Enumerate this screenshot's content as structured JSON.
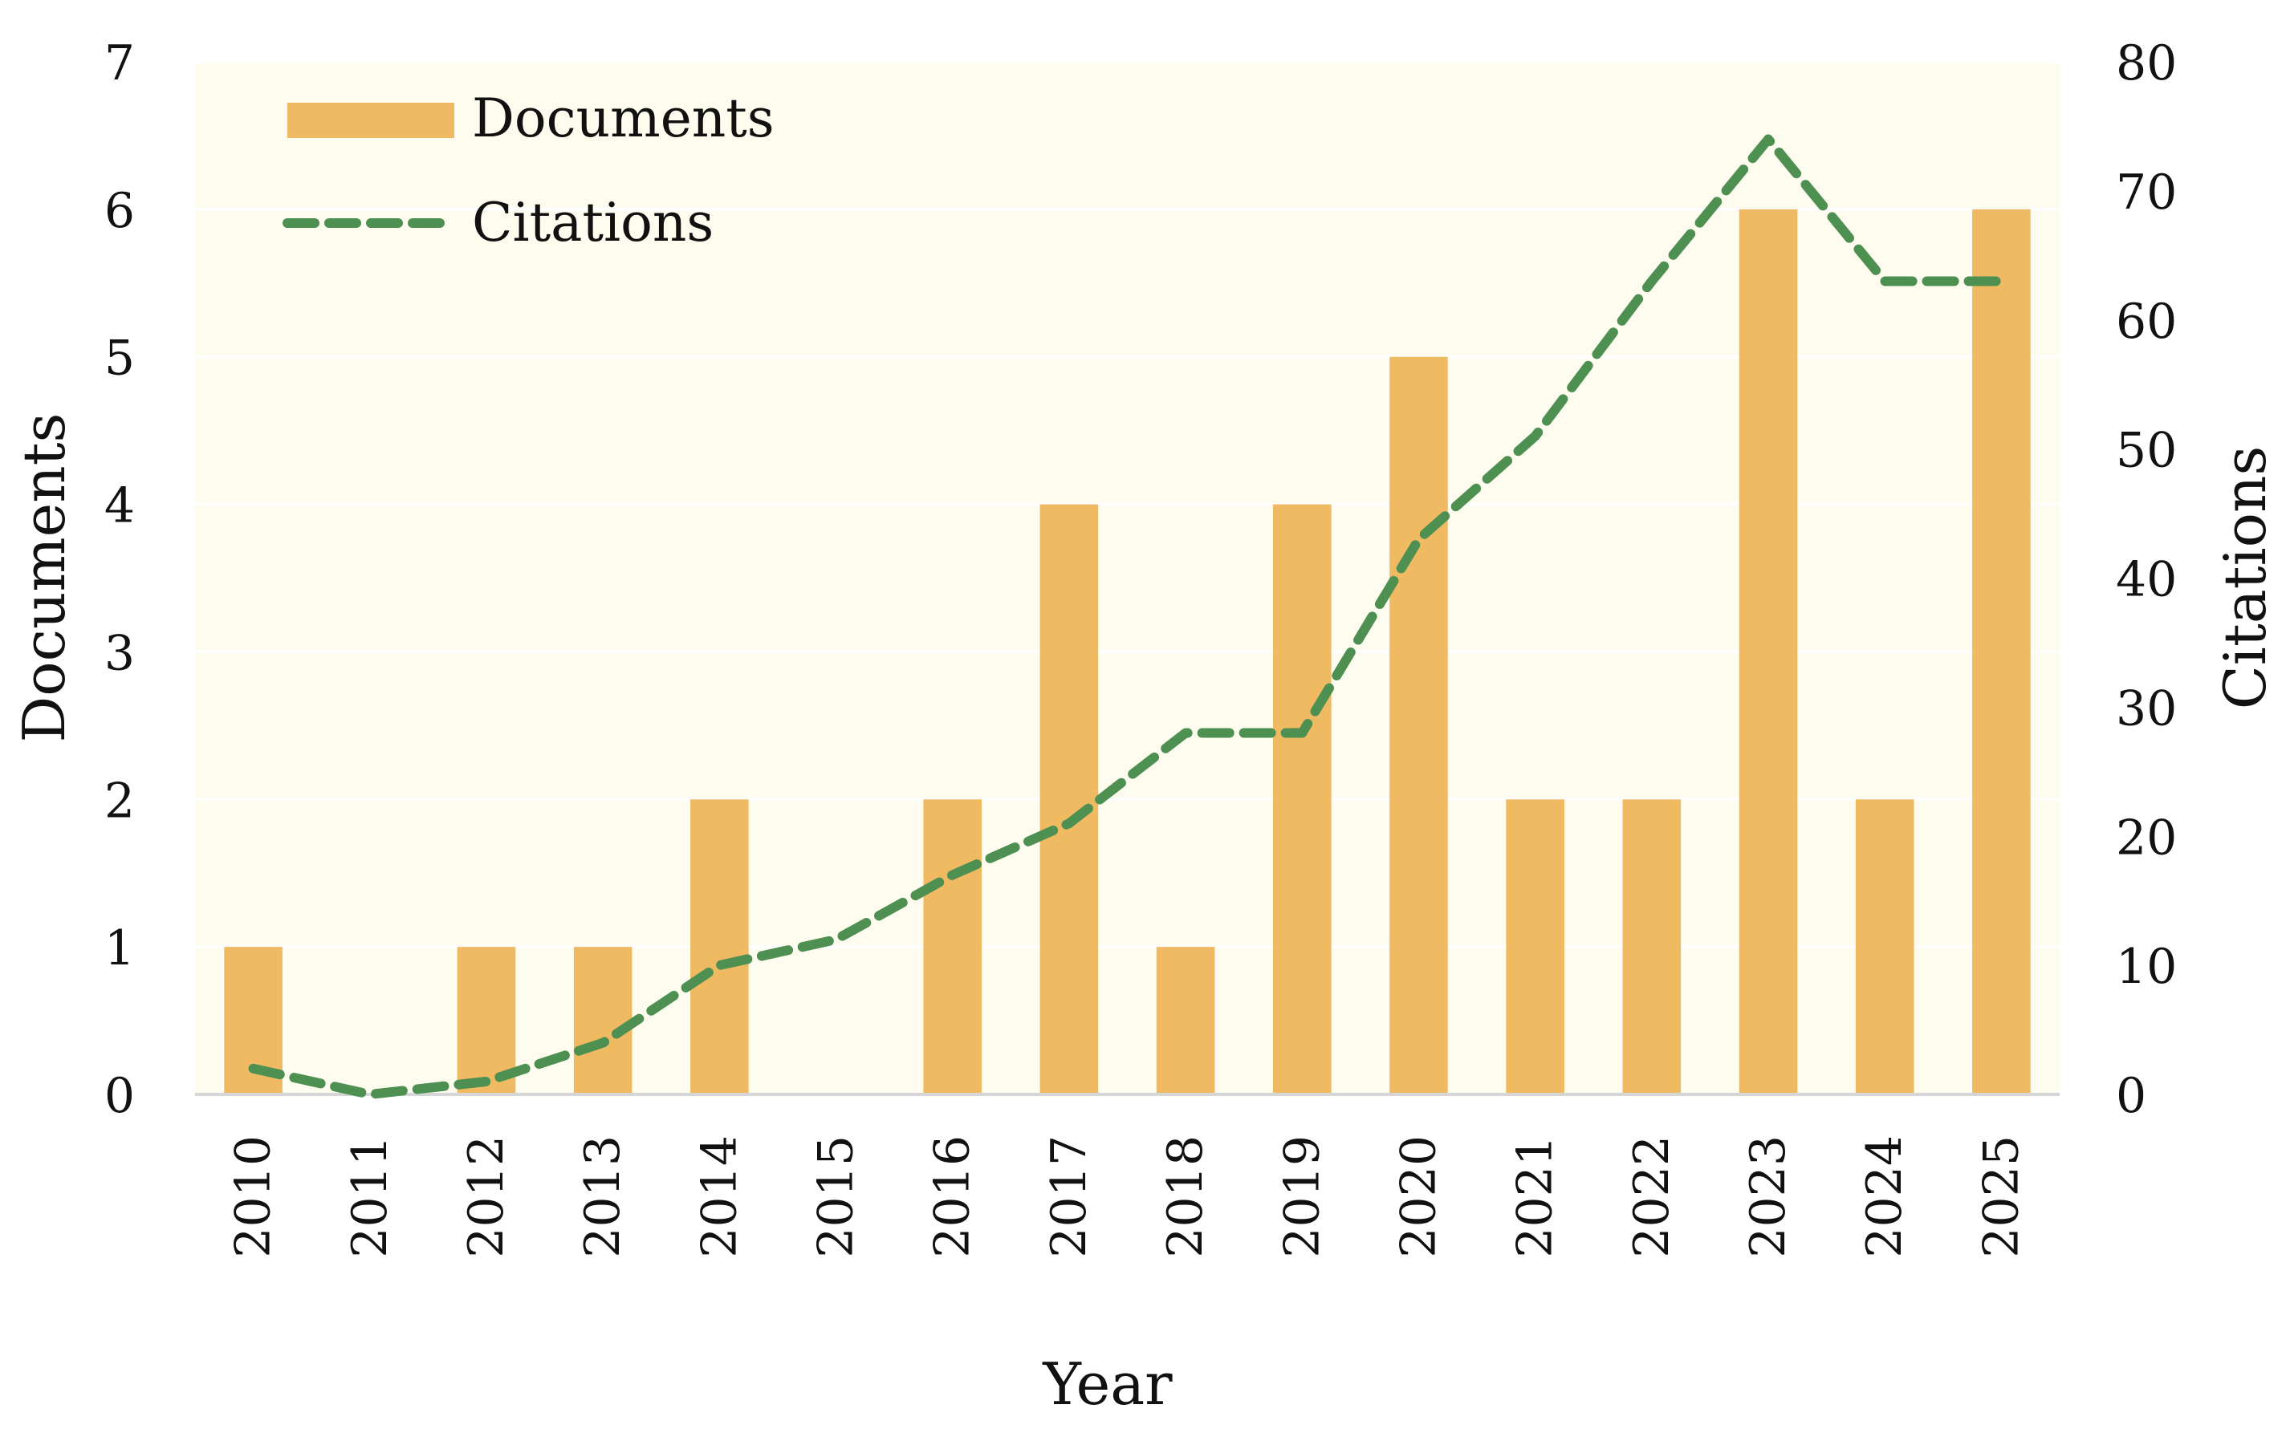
{
  "chart_data": {
    "type": "bar+line",
    "title": "",
    "xlabel": "Year",
    "ylabel_left": "Documents",
    "ylabel_right": "Citations",
    "categories": [
      "2010",
      "2011",
      "2012",
      "2013",
      "2014",
      "2015",
      "2016",
      "2017",
      "2018",
      "2019",
      "2020",
      "2021",
      "2022",
      "2023",
      "2024",
      "2025"
    ],
    "series": [
      {
        "name": "Documents",
        "type": "bar",
        "axis": "left",
        "color": "#F0BA63",
        "values": [
          1,
          0,
          1,
          1,
          2,
          0,
          2,
          4,
          1,
          4,
          5,
          2,
          2,
          6,
          2,
          6
        ]
      },
      {
        "name": "Citations",
        "type": "line",
        "axis": "right",
        "style": "dashed",
        "color": "#4E8F52",
        "values": [
          2,
          0,
          1,
          4,
          10,
          12,
          17,
          21,
          28,
          28,
          43,
          51,
          63,
          74,
          63,
          63
        ]
      }
    ],
    "ylim_left": [
      0,
      7
    ],
    "yticks_left": [
      "0",
      "1",
      "2",
      "3",
      "4",
      "5",
      "6",
      "7"
    ],
    "ylim_right": [
      0,
      80
    ],
    "yticks_right": [
      "0",
      "10",
      "20",
      "30",
      "40",
      "50",
      "60",
      "70",
      "80"
    ],
    "legend": {
      "position": "top-left",
      "entries": [
        "Documents",
        "Citations"
      ]
    },
    "grid": true,
    "background_color": "#FDFCEE"
  }
}
